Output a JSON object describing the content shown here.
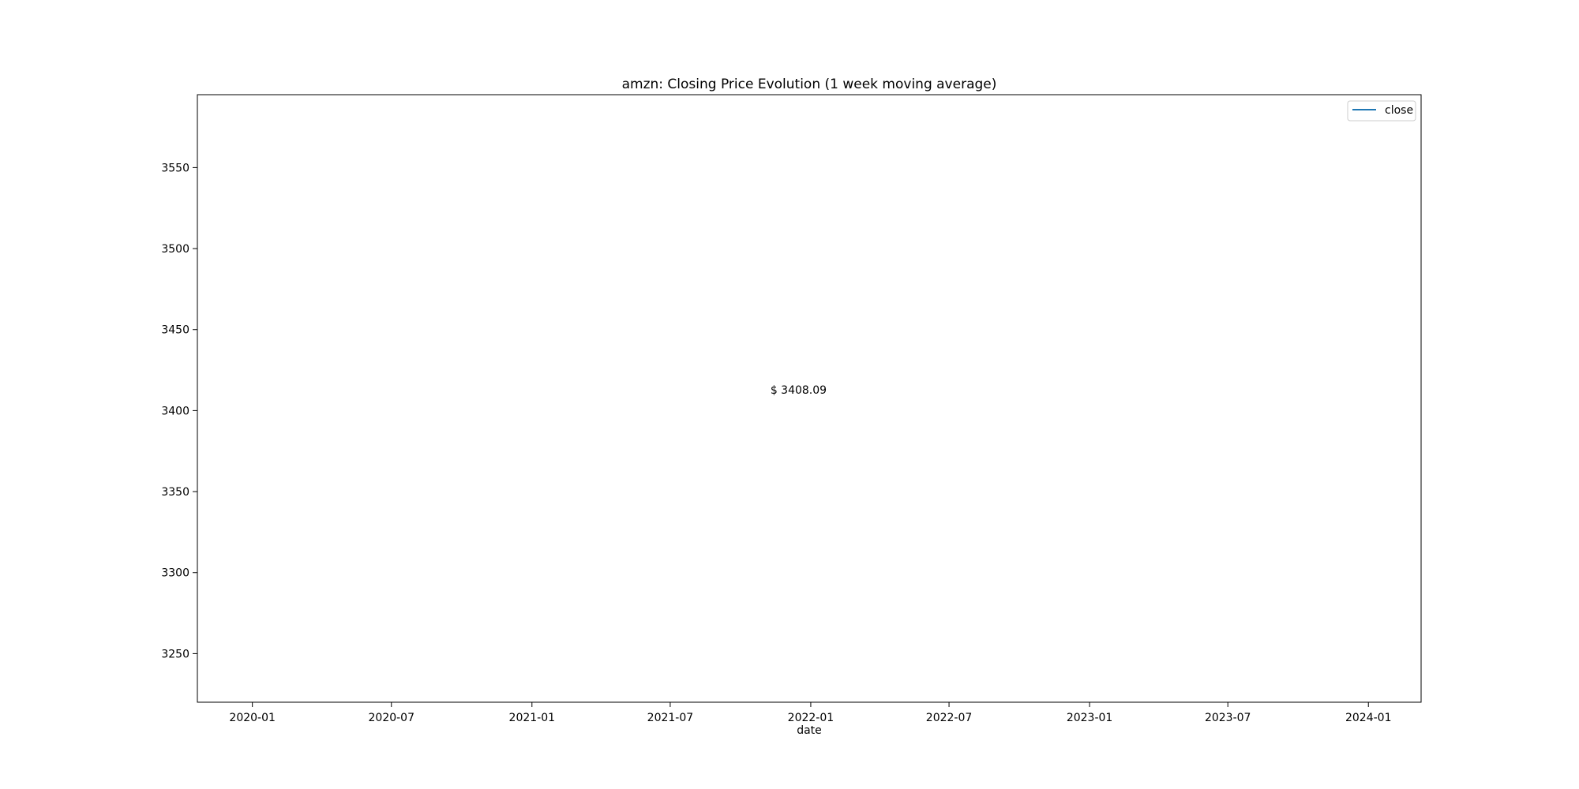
{
  "chart_data": {
    "type": "line",
    "title": "amzn: Closing Price Evolution (1 week moving average)",
    "xlabel": "date",
    "ylabel": "",
    "x_type": "date",
    "xlim": [
      "2019-10-21",
      "2024-03-10"
    ],
    "ylim": [
      3220,
      3595
    ],
    "x_ticks": [
      "2020-01",
      "2020-07",
      "2021-01",
      "2021-07",
      "2022-01",
      "2022-07",
      "2023-01",
      "2023-07",
      "2024-01"
    ],
    "x_tick_dates": [
      "2020-01-01",
      "2020-07-01",
      "2021-01-01",
      "2021-07-01",
      "2022-01-01",
      "2022-07-01",
      "2023-01-01",
      "2023-07-01",
      "2024-01-01"
    ],
    "y_ticks": [
      3250,
      3300,
      3350,
      3400,
      3450,
      3500,
      3550
    ],
    "legend": {
      "position": "top-right"
    },
    "grid": false,
    "series": [
      {
        "name": "close",
        "color": "#1f77b4",
        "x": [],
        "values": []
      }
    ],
    "annotations": [
      {
        "text": "$ 3408.09",
        "x": "2021-12-16",
        "y": 3408.09
      }
    ]
  }
}
